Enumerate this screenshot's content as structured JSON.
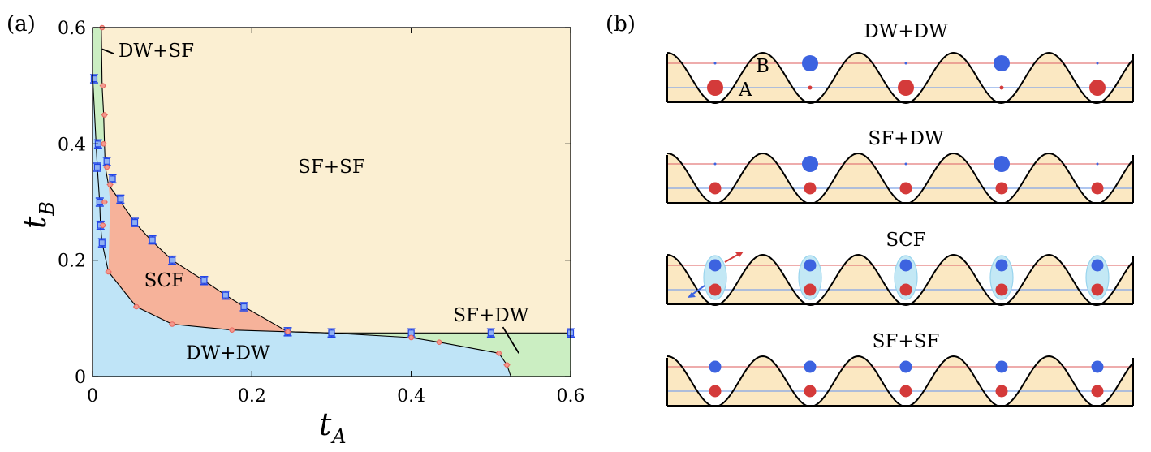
{
  "panel_a": {
    "letter": "(a)",
    "chart_data": {
      "type": "phase-diagram",
      "title": "",
      "xlabel": "t_A",
      "ylabel": "t_B",
      "xlabel_main": "t",
      "xlabel_sub": "A",
      "ylabel_main": "t",
      "ylabel_sub": "B",
      "xlim": [
        0,
        0.6
      ],
      "ylim": [
        0,
        0.6
      ],
      "x_ticks": [
        0,
        0.2,
        0.4,
        0.6
      ],
      "y_ticks": [
        0,
        0.2,
        0.4,
        0.6
      ],
      "x_tick_labels": [
        "0",
        "0.2",
        "0.4",
        "0.6"
      ],
      "y_tick_labels": [
        "0",
        "0.2",
        "0.4",
        "0.6"
      ],
      "grid": false,
      "colors": {
        "SF+SF": "#fbefd2",
        "SCF": "#f6b29a",
        "DW+DW": "#bfe4f7",
        "SF+DW": "#cbeec2",
        "DW+SF": "#cbeec2",
        "blue_marker": "#2446e6",
        "red_marker": "#e8675f",
        "boundary": "#000000"
      },
      "regions": [
        {
          "name": "SF+SF",
          "label": "SF+SF",
          "label_pos": [
            0.3,
            0.35
          ]
        },
        {
          "name": "SCF",
          "label": "SCF",
          "label_pos": [
            0.09,
            0.155
          ]
        },
        {
          "name": "DW+DW",
          "label": "DW+DW",
          "label_pos": [
            0.17,
            0.03
          ]
        },
        {
          "name": "SF+DW",
          "label": "SF+DW",
          "label_pos": [
            0.5,
            0.095
          ]
        },
        {
          "name": "DW+SF",
          "label": "DW+SF",
          "label_pos": [
            0.08,
            0.55
          ]
        }
      ],
      "boundaries": {
        "dw_sf_left": [
          [
            0,
            0.52
          ],
          [
            0.006,
            0.36
          ],
          [
            0.009,
            0.3
          ],
          [
            0.01,
            0.26
          ],
          [
            0.012,
            0.23
          ],
          [
            0.02,
            0.18
          ],
          [
            0.055,
            0.12
          ],
          [
            0.1,
            0.09
          ],
          [
            0.175,
            0.08
          ],
          [
            0.245,
            0.077
          ]
        ],
        "dw_sf_right": [
          [
            0.011,
            0.6
          ],
          [
            0.012,
            0.5
          ],
          [
            0.014,
            0.45
          ],
          [
            0.015,
            0.4
          ],
          [
            0.016,
            0.36
          ],
          [
            0.02,
            0.33
          ],
          [
            0.033,
            0.305
          ],
          [
            0.053,
            0.265
          ],
          [
            0.073,
            0.235
          ],
          [
            0.1,
            0.2
          ],
          [
            0.14,
            0.165
          ],
          [
            0.167,
            0.14
          ],
          [
            0.19,
            0.12
          ],
          [
            0.245,
            0.077
          ]
        ],
        "sfdw_horizontal": [
          [
            0.245,
            0.077
          ],
          [
            0.3,
            0.075
          ],
          [
            0.4,
            0.075
          ],
          [
            0.5,
            0.075
          ],
          [
            0.6,
            0.075
          ]
        ],
        "dwdw_lower": [
          [
            0.245,
            0.077
          ],
          [
            0.3,
            0.075
          ],
          [
            0.4,
            0.067
          ],
          [
            0.435,
            0.059
          ],
          [
            0.51,
            0.04
          ],
          [
            0.52,
            0.02
          ],
          [
            0.525,
            0.0
          ]
        ]
      },
      "series": [
        {
          "name": "blue",
          "marker": "square-errorbar",
          "points": [
            [
              0.002,
              0.512
            ],
            [
              0.007,
              0.4
            ],
            [
              0.006,
              0.36
            ],
            [
              0.009,
              0.3
            ],
            [
              0.01,
              0.26
            ],
            [
              0.012,
              0.23
            ],
            [
              0.018,
              0.37
            ],
            [
              0.025,
              0.34
            ],
            [
              0.035,
              0.305
            ],
            [
              0.053,
              0.265
            ],
            [
              0.075,
              0.235
            ],
            [
              0.1,
              0.2
            ],
            [
              0.14,
              0.165
            ],
            [
              0.167,
              0.14
            ],
            [
              0.19,
              0.12
            ],
            [
              0.245,
              0.077
            ],
            [
              0.3,
              0.075
            ],
            [
              0.4,
              0.075
            ],
            [
              0.5,
              0.075
            ],
            [
              0.6,
              0.075
            ]
          ]
        },
        {
          "name": "red",
          "marker": "circle-errorbar",
          "points": [
            [
              0.012,
              0.6
            ],
            [
              0.013,
              0.5
            ],
            [
              0.015,
              0.45
            ],
            [
              0.014,
              0.4
            ],
            [
              0.018,
              0.36
            ],
            [
              0.022,
              0.33
            ],
            [
              0.015,
              0.3
            ],
            [
              0.013,
              0.26
            ],
            [
              0.02,
              0.18
            ],
            [
              0.055,
              0.12
            ],
            [
              0.1,
              0.09
            ],
            [
              0.175,
              0.08
            ],
            [
              0.245,
              0.077
            ],
            [
              0.4,
              0.067
            ],
            [
              0.435,
              0.059
            ],
            [
              0.51,
              0.04
            ],
            [
              0.52,
              0.02
            ]
          ]
        }
      ],
      "annotations": [
        {
          "text": "DW+SF",
          "pointer_from": [
            0.08,
            0.55
          ],
          "pointer_to": [
            0.012,
            0.545
          ]
        },
        {
          "text": "SF+DW",
          "pointer_from": [
            0.515,
            0.085
          ],
          "pointer_to": [
            0.535,
            0.04
          ]
        }
      ]
    }
  },
  "panel_b": {
    "letter": "(b)",
    "colors": {
      "well_fill": "#fbe8c2",
      "blue_atom": "#3d63e0",
      "red_atom": "#d43a3a",
      "pair_ellipse": "#bde6f5",
      "upper_line": "#e47a7a",
      "lower_line": "#7fa3e8"
    },
    "labels": {
      "A": "A",
      "B": "B"
    },
    "states": [
      {
        "title": "DW+DW",
        "blue": [
          0.06,
          1.0,
          0.06,
          1.0,
          0.06
        ],
        "red": [
          1.0,
          0.25,
          1.0,
          0.25,
          1.0
        ],
        "pairs": false
      },
      {
        "title": "SF+DW",
        "blue": [
          0.06,
          1.0,
          0.06,
          1.0,
          0.06
        ],
        "red": [
          0.75,
          0.75,
          0.75,
          0.75,
          0.75
        ],
        "pairs": false
      },
      {
        "title": "SCF",
        "blue": [
          0.75,
          0.75,
          0.75,
          0.75,
          0.75
        ],
        "red": [
          0.75,
          0.75,
          0.75,
          0.75,
          0.75
        ],
        "pairs": true
      },
      {
        "title": "SF+SF",
        "blue": [
          0.75,
          0.75,
          0.75,
          0.75,
          0.75
        ],
        "red": [
          0.75,
          0.75,
          0.75,
          0.75,
          0.75
        ],
        "pairs": false
      }
    ]
  }
}
